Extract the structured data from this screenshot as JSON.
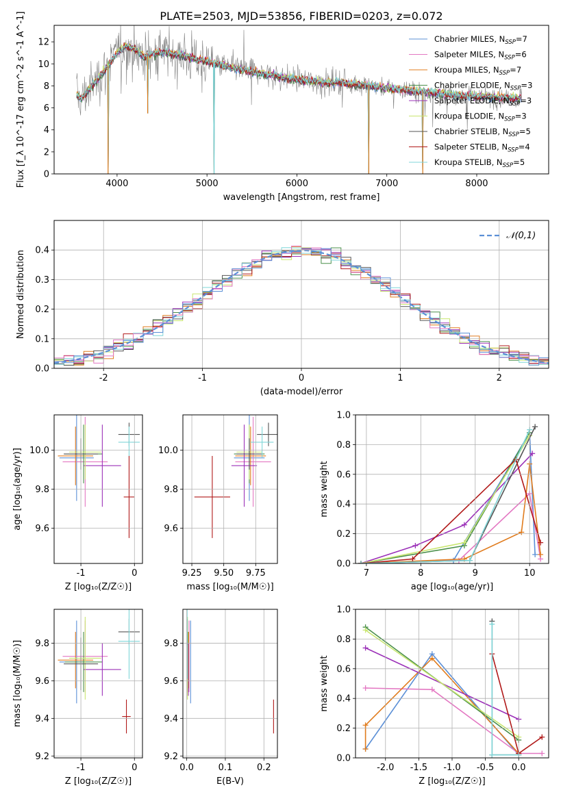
{
  "figure_title": "PLATE=2503, MJD=53856, FIBERID=0203, z=0.072",
  "colors": {
    "Chabrier MILES": "#5b8fd6",
    "Salpeter MILES": "#e377c2",
    "Kroupa MILES": "#e07b1c",
    "Chabrier ELODIE": "#4a8f4a",
    "Salpeter ELODIE": "#9b30b8",
    "Kroupa ELODIE": "#c8e66e",
    "Chabrier STELIB": "#555555",
    "Salpeter STELIB": "#b01818",
    "Kroupa STELIB": "#7fd6d8",
    "data": "#808080",
    "normal": "#5b8fd6"
  },
  "chart_data": [
    {
      "id": "spectrum",
      "type": "line",
      "title": "PLATE=2503, MJD=53856, FIBERID=0203, z=0.072",
      "xlabel": "wavelength [Angstrom, rest frame]",
      "ylabel": "Flux [f_λ 10^-17 erg cm^-2 s^-1 A^-1]",
      "xlim": [
        3300,
        8800
      ],
      "ylim": [
        0,
        13.5
      ],
      "xticks": [
        "4000",
        "5000",
        "6000",
        "7000",
        "8000"
      ],
      "yticks": [
        "0",
        "2",
        "4",
        "6",
        "8",
        "10",
        "12"
      ],
      "legend_position": "top-right",
      "legend": [
        {
          "prefix": "Chabrier MILES, N",
          "n": "7",
          "key": "Chabrier MILES"
        },
        {
          "prefix": "Salpeter MILES, N",
          "n": "6",
          "key": "Salpeter MILES"
        },
        {
          "prefix": "Kroupa MILES, N",
          "n": "7",
          "key": "Kroupa MILES"
        },
        {
          "prefix": "Chabrier ELODIE, N",
          "n": "3",
          "key": "Chabrier ELODIE"
        },
        {
          "prefix": "Salpeter ELODIE, N",
          "n": "3",
          "key": "Salpeter ELODIE"
        },
        {
          "prefix": "Kroupa ELODIE, N",
          "n": "3",
          "key": "Kroupa ELODIE"
        },
        {
          "prefix": "Chabrier STELIB, N",
          "n": "5",
          "key": "Chabrier STELIB"
        },
        {
          "prefix": "Salpeter STELIB, N",
          "n": "4",
          "key": "Salpeter STELIB"
        },
        {
          "prefix": "Kroupa STELIB, N",
          "n": "5",
          "key": "Kroupa STELIB"
        }
      ],
      "model_continuum": {
        "x": [
          3550,
          3600,
          3700,
          3800,
          3900,
          4000,
          4100,
          4200,
          4300,
          4400,
          4500,
          4700,
          4900,
          5100,
          5300,
          5500,
          5700,
          5900,
          6100,
          6300,
          6500,
          6700,
          6900,
          7100,
          7300,
          7500,
          7700,
          7900,
          8100,
          8300,
          8500
        ],
        "y": [
          7.2,
          6.8,
          7.8,
          8.8,
          9.8,
          11.0,
          11.6,
          11.3,
          10.6,
          10.9,
          11.1,
          10.8,
          10.4,
          10.0,
          9.6,
          9.3,
          9.0,
          8.7,
          8.5,
          8.3,
          8.3,
          8.1,
          7.9,
          7.7,
          7.5,
          7.4,
          7.2,
          7.1,
          7.0,
          6.9,
          6.9
        ]
      },
      "absorption_lines": [
        {
          "x": 3900,
          "y": 0
        },
        {
          "x": 4340,
          "y": 5.5
        },
        {
          "x": 5080,
          "y": 0
        },
        {
          "x": 6800,
          "y": 0
        },
        {
          "x": 7400,
          "y": 0
        }
      ]
    },
    {
      "id": "residuals",
      "type": "line",
      "xlabel": "(data-model)/error",
      "ylabel": "Normed distribution",
      "xlim": [
        -2.5,
        2.5
      ],
      "ylim": [
        0,
        0.5
      ],
      "xticks": [
        "-2",
        "-1",
        "0",
        "1",
        "2"
      ],
      "yticks": [
        "0.0",
        "0.1",
        "0.2",
        "0.3",
        "0.4"
      ],
      "legend_position": "top-right",
      "legend_label": "𝒩(0,1)",
      "normal_curve": {
        "mean": 0,
        "sigma": 1
      }
    },
    {
      "id": "age_vs_Z",
      "type": "scatter",
      "xlabel": "Z [log₁₀(Z/Z☉)]",
      "ylabel": "age  [log₁₀(age/yr)]",
      "xlim": [
        -1.5,
        0.15
      ],
      "ylim": [
        9.42,
        10.18
      ],
      "xticks": [
        "-1",
        "0"
      ],
      "yticks": [
        "9.6",
        "9.8",
        "10.0"
      ],
      "points": [
        {
          "key": "Chabrier MILES",
          "x": -1.08,
          "y": 9.96,
          "xerr": 0.32,
          "yerr": 0.22
        },
        {
          "key": "Salpeter MILES",
          "x": -0.92,
          "y": 9.94,
          "xerr": 0.42,
          "yerr": 0.23
        },
        {
          "key": "Kroupa MILES",
          "x": -1.1,
          "y": 9.97,
          "xerr": 0.33,
          "yerr": 0.15
        },
        {
          "key": "Chabrier ELODIE",
          "x": -0.95,
          "y": 9.98,
          "xerr": 0.35,
          "yerr": 0.15
        },
        {
          "key": "Salpeter ELODIE",
          "x": -0.6,
          "y": 9.92,
          "xerr": 0.35,
          "yerr": 0.21
        },
        {
          "key": "Kroupa ELODIE",
          "x": -0.92,
          "y": 9.99,
          "xerr": 0.3,
          "yerr": 0.14
        },
        {
          "key": "Chabrier STELIB",
          "x": -1.0,
          "y": 9.98,
          "xerr": 0.32,
          "yerr": 0.08
        },
        {
          "key": "Chabrier STELIB",
          "x": -0.1,
          "y": 10.08,
          "xerr": 0.2,
          "yerr": 0.06
        },
        {
          "key": "Kroupa STELIB",
          "x": -0.1,
          "y": 10.04,
          "xerr": 0.2,
          "yerr": 0.08
        },
        {
          "key": "Salpeter STELIB",
          "x": -0.1,
          "y": 9.76,
          "xerr": 0.1,
          "yerr": 0.21
        }
      ]
    },
    {
      "id": "age_vs_mass",
      "type": "scatter",
      "xlabel": "mass [log₁₀(M/M☉)]",
      "ylabel": "",
      "xlim": [
        9.18,
        9.92
      ],
      "ylim": [
        9.42,
        10.18
      ],
      "xticks": [
        "9.25",
        "9.50",
        "9.75"
      ],
      "yticks": [
        "9.6",
        "9.8",
        "10.0"
      ],
      "points": [
        {
          "key": "Chabrier MILES",
          "x": 9.7,
          "y": 9.96,
          "xerr": 0.12,
          "yerr": 0.22
        },
        {
          "key": "Salpeter MILES",
          "x": 9.73,
          "y": 9.94,
          "xerr": 0.14,
          "yerr": 0.23
        },
        {
          "key": "Kroupa MILES",
          "x": 9.71,
          "y": 9.97,
          "xerr": 0.12,
          "yerr": 0.15
        },
        {
          "key": "Chabrier ELODIE",
          "x": 9.7,
          "y": 9.98,
          "xerr": 0.12,
          "yerr": 0.15
        },
        {
          "key": "Salpeter ELODIE",
          "x": 9.66,
          "y": 9.92,
          "xerr": 0.1,
          "yerr": 0.21
        },
        {
          "key": "Kroupa ELODIE",
          "x": 9.7,
          "y": 9.99,
          "xerr": 0.1,
          "yerr": 0.14
        },
        {
          "key": "Chabrier STELIB",
          "x": 9.7,
          "y": 9.98,
          "xerr": 0.1,
          "yerr": 0.08
        },
        {
          "key": "Chabrier STELIB",
          "x": 9.85,
          "y": 10.08,
          "xerr": 0.09,
          "yerr": 0.06
        },
        {
          "key": "Kroupa STELIB",
          "x": 9.8,
          "y": 10.04,
          "xerr": 0.09,
          "yerr": 0.08
        },
        {
          "key": "Salpeter STELIB",
          "x": 9.41,
          "y": 9.76,
          "xerr": 0.14,
          "yerr": 0.21
        }
      ]
    },
    {
      "id": "weight_vs_age",
      "type": "line",
      "xlabel": "age  [log₁₀(age/yr)]",
      "ylabel": "mass weight",
      "xlim": [
        6.8,
        10.35
      ],
      "ylim": [
        0,
        1
      ],
      "xticks": [
        "7",
        "8",
        "9",
        "10"
      ],
      "yticks": [
        "0.0",
        "0.2",
        "0.4",
        "0.6",
        "0.8",
        "1.0"
      ],
      "series": [
        {
          "key": "Chabrier MILES",
          "x": [
            6.9,
            8.6,
            10.0,
            10.1
          ],
          "y": [
            0.0,
            0.02,
            0.88,
            0.06
          ]
        },
        {
          "key": "Salpeter MILES",
          "x": [
            6.9,
            8.7,
            10.0,
            10.2
          ],
          "y": [
            0.0,
            0.02,
            0.47,
            0.03
          ]
        },
        {
          "key": "Kroupa MILES",
          "x": [
            6.9,
            8.8,
            9.85,
            10.0,
            10.2
          ],
          "y": [
            0.0,
            0.03,
            0.21,
            0.67,
            0.06
          ]
        },
        {
          "key": "Chabrier ELODIE",
          "x": [
            6.9,
            8.8,
            10.0
          ],
          "y": [
            0.0,
            0.12,
            0.88
          ]
        },
        {
          "key": "Salpeter ELODIE",
          "x": [
            6.9,
            7.9,
            8.8,
            10.05
          ],
          "y": [
            0.0,
            0.12,
            0.26,
            0.74
          ]
        },
        {
          "key": "Kroupa ELODIE",
          "x": [
            6.9,
            8.8,
            10.0
          ],
          "y": [
            0.0,
            0.14,
            0.86
          ]
        },
        {
          "key": "Chabrier STELIB",
          "x": [
            6.9,
            8.9,
            10.1
          ],
          "y": [
            0.0,
            0.02,
            0.92
          ]
        },
        {
          "key": "Salpeter STELIB",
          "x": [
            6.9,
            7.85,
            9.75,
            10.2
          ],
          "y": [
            0.0,
            0.03,
            0.7,
            0.14
          ]
        },
        {
          "key": "Kroupa STELIB",
          "x": [
            6.9,
            8.9,
            10.0
          ],
          "y": [
            0.0,
            0.02,
            0.9
          ]
        }
      ]
    },
    {
      "id": "mass_vs_Z",
      "type": "scatter",
      "xlabel": "Z [log₁₀(Z/Z☉)]",
      "ylabel": "mass [log₁₀(M/M☉)]",
      "xlim": [
        -1.5,
        0.15
      ],
      "ylim": [
        9.19,
        9.98
      ],
      "xticks": [
        "-1",
        "0"
      ],
      "yticks": [
        "9.2",
        "9.4",
        "9.6",
        "9.8"
      ],
      "points": [
        {
          "key": "Chabrier MILES",
          "x": -1.08,
          "y": 9.7,
          "xerr": 0.32,
          "yerr": 0.22
        },
        {
          "key": "Salpeter MILES",
          "x": -0.92,
          "y": 9.73,
          "xerr": 0.42,
          "yerr": 0.19
        },
        {
          "key": "Kroupa MILES",
          "x": -1.1,
          "y": 9.71,
          "xerr": 0.33,
          "yerr": 0.15
        },
        {
          "key": "Chabrier ELODIE",
          "x": -0.95,
          "y": 9.7,
          "xerr": 0.35,
          "yerr": 0.16
        },
        {
          "key": "Salpeter ELODIE",
          "x": -0.6,
          "y": 9.66,
          "xerr": 0.35,
          "yerr": 0.14
        },
        {
          "key": "Kroupa ELODIE",
          "x": -0.92,
          "y": 9.72,
          "xerr": 0.3,
          "yerr": 0.22
        },
        {
          "key": "Chabrier STELIB",
          "x": -1.0,
          "y": 9.69,
          "xerr": 0.32,
          "yerr": 0.14
        },
        {
          "key": "Chabrier STELIB",
          "x": -0.1,
          "y": 9.86,
          "xerr": 0.2,
          "yerr": 0.07
        },
        {
          "key": "Kroupa STELIB",
          "x": -0.1,
          "y": 9.81,
          "xerr": 0.2,
          "yerr": 0.2
        },
        {
          "key": "Salpeter STELIB",
          "x": -0.15,
          "y": 9.41,
          "xerr": 0.08,
          "yerr": 0.09
        }
      ]
    },
    {
      "id": "mass_vs_ebv",
      "type": "scatter",
      "xlabel": "E(B-V)",
      "ylabel": "",
      "xlim": [
        -0.01,
        0.235
      ],
      "ylim": [
        9.19,
        9.98
      ],
      "xticks": [
        "0.0",
        "0.1",
        "0.2"
      ],
      "yticks": [
        "9.2",
        "9.4",
        "9.6",
        "9.8"
      ],
      "points": [
        {
          "key": "Chabrier MILES",
          "x": 0.01,
          "y": 9.7,
          "xerr": 0.0,
          "yerr": 0.22
        },
        {
          "key": "Salpeter MILES",
          "x": 0.006,
          "y": 9.73,
          "xerr": 0.0,
          "yerr": 0.19
        },
        {
          "key": "Kroupa MILES",
          "x": 0.005,
          "y": 9.71,
          "xerr": 0.0,
          "yerr": 0.15
        },
        {
          "key": "Chabrier ELODIE",
          "x": 0.003,
          "y": 9.7,
          "xerr": 0.0,
          "yerr": 0.16
        },
        {
          "key": "Salpeter ELODIE",
          "x": 0.004,
          "y": 9.66,
          "xerr": 0.0,
          "yerr": 0.14
        },
        {
          "key": "Kroupa ELODIE",
          "x": 0.002,
          "y": 9.72,
          "xerr": 0.0,
          "yerr": 0.22
        },
        {
          "key": "Chabrier STELIB",
          "x": 0.001,
          "y": 9.86,
          "xerr": 0.0,
          "yerr": 0.07
        },
        {
          "key": "Kroupa STELIB",
          "x": 0.001,
          "y": 9.81,
          "xerr": 0.0,
          "yerr": 0.2
        },
        {
          "key": "Salpeter STELIB",
          "x": 0.225,
          "y": 9.41,
          "xerr": 0.0,
          "yerr": 0.09
        }
      ]
    },
    {
      "id": "weight_vs_Z",
      "type": "line",
      "xlabel": "Z [log₁₀(Z/Z☉)]",
      "ylabel": "mass weight",
      "xlim": [
        -2.45,
        0.45
      ],
      "ylim": [
        0,
        1
      ],
      "xticks": [
        "-2.0",
        "-1.5",
        "-1.0",
        "-0.5",
        "0.0"
      ],
      "yticks": [
        "0.0",
        "0.2",
        "0.4",
        "0.6",
        "0.8",
        "1.0"
      ],
      "series": [
        {
          "key": "Chabrier MILES",
          "x": [
            -2.3,
            -1.3,
            0.0
          ],
          "y": [
            0.06,
            0.7,
            0.02
          ]
        },
        {
          "key": "Salpeter MILES",
          "x": [
            -2.3,
            -1.3,
            0.0,
            0.35
          ],
          "y": [
            0.47,
            0.46,
            0.03,
            0.03
          ]
        },
        {
          "key": "Kroupa MILES",
          "x": [
            -2.3,
            -2.3,
            -1.3,
            0.0
          ],
          "y": [
            0.06,
            0.22,
            0.67,
            0.03
          ]
        },
        {
          "key": "Chabrier ELODIE",
          "x": [
            -2.3,
            0.0
          ],
          "y": [
            0.88,
            0.12
          ]
        },
        {
          "key": "Salpeter ELODIE",
          "x": [
            -2.3,
            0.0
          ],
          "y": [
            0.74,
            0.26
          ]
        },
        {
          "key": "Kroupa ELODIE",
          "x": [
            -2.3,
            0.0
          ],
          "y": [
            0.86,
            0.14
          ]
        },
        {
          "key": "Chabrier STELIB",
          "x": [
            -0.4,
            -0.4,
            0.0
          ],
          "y": [
            0.92,
            0.02,
            0.02
          ]
        },
        {
          "key": "Salpeter STELIB",
          "x": [
            -0.4,
            0.0,
            0.35
          ],
          "y": [
            0.7,
            0.03,
            0.14
          ]
        },
        {
          "key": "Kroupa STELIB",
          "x": [
            -0.4,
            -0.4,
            0.0
          ],
          "y": [
            0.9,
            0.02,
            0.02
          ]
        }
      ]
    }
  ]
}
